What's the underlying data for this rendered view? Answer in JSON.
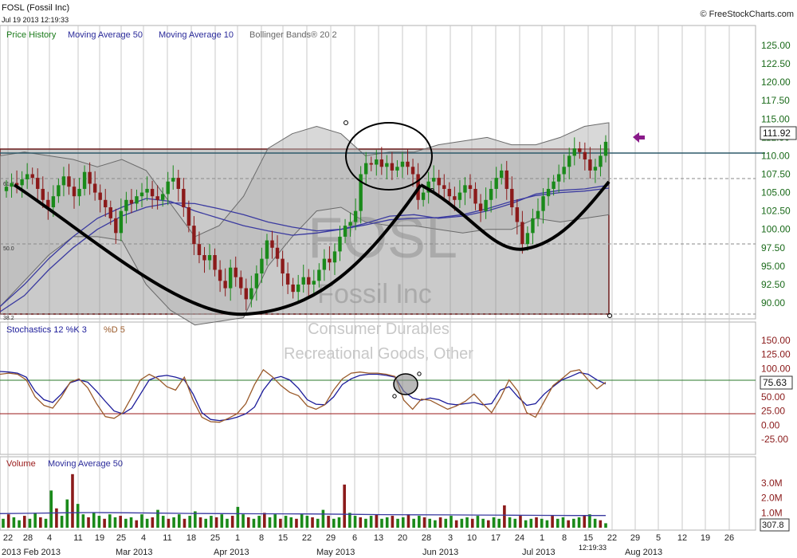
{
  "header": {
    "symbol_title": "FOSL (Fossil Inc)",
    "timestamp": "Jul 19 2013 12:19:33",
    "brand": "© FreeStockCharts.com",
    "clock": "12:19:33"
  },
  "watermark": {
    "ticker": "FOSL",
    "company": "Fossil Inc",
    "sector": "Consumer Durables",
    "industry": "Recreational Goods, Other"
  },
  "colors": {
    "up": "#1a8a1a",
    "down": "#8b1a1a",
    "ma50": "#3a3aa0",
    "stoch_k": "#1c1c9a",
    "stoch_d": "#9a5a2a",
    "arrow": "#8a1a8a",
    "resistance": "#2e5a6a"
  },
  "chart_data": [
    {
      "type": "candlestick",
      "panel": "price",
      "legend": [
        {
          "label": "Price History",
          "color": "#1a7a1a"
        },
        {
          "label": "Moving Average 50",
          "color": "#2a2a9a"
        },
        {
          "label": "Moving Average 10",
          "color": "#2a2a9a"
        },
        {
          "label": "Bollinger Bands® 20 2",
          "color": "#666666"
        }
      ],
      "y_ticks": [
        "125.00",
        "122.50",
        "120.00",
        "117.50",
        "115.00",
        "112.50",
        "110.00",
        "107.50",
        "105.00",
        "102.50",
        "100.00",
        "97.50",
        "95.00",
        "92.50",
        "90.00"
      ],
      "ylim": [
        88,
        126
      ],
      "last_value": "111.92",
      "fib_labels": [
        "61.8",
        "50.0",
        "38.2"
      ],
      "series": [
        {
          "name": "Price History",
          "values": [
            105.8,
            106.3,
            106.0,
            106.8,
            107.5,
            107.0,
            105.5,
            104.0,
            103.0,
            104.5,
            106.0,
            107.2,
            105.8,
            104.5,
            105.5,
            107.8,
            106.2,
            105.0,
            104.0,
            103.0,
            101.5,
            99.5,
            102.5,
            104.0,
            103.5,
            104.5,
            105.0,
            105.5,
            104.5,
            104.0,
            104.8,
            106.5,
            107.0,
            105.5,
            103.0,
            100.5,
            98.0,
            96.5,
            95.8,
            96.5,
            94.5,
            93.0,
            92.0,
            94.8,
            93.5,
            92.0,
            90.5,
            92.0,
            94.0,
            96.0,
            98.5,
            97.5,
            96.0,
            94.0,
            92.5,
            91.5,
            92.5,
            93.5,
            92.5,
            93.0,
            94.5,
            96.0,
            95.5,
            97.0,
            99.0,
            100.5,
            101.0,
            102.5,
            107.5,
            109.0,
            108.8,
            109.5,
            108.5,
            109.0,
            108.0,
            108.5,
            109.2,
            108.5,
            107.5,
            104.0,
            105.0,
            106.5,
            107.0,
            106.0,
            105.5,
            104.5,
            104.0,
            105.0,
            106.0,
            105.5,
            103.5,
            102.5,
            104.0,
            105.5,
            107.0,
            108.0,
            105.5,
            103.0,
            101.0,
            98.0,
            99.5,
            101.5,
            102.5,
            104.5,
            105.5,
            106.5,
            107.5,
            108.5,
            110.0,
            111.0,
            110.5,
            109.5,
            108.0,
            108.5,
            110.0,
            111.9
          ]
        },
        {
          "name": "Moving Average 50",
          "values": [
            89.5,
            92.5,
            96.0,
            99.0,
            101.5,
            103.0,
            104.2,
            103.8,
            102.5,
            101.5,
            100.5,
            99.8,
            99.2,
            99.5,
            100.0,
            100.8,
            101.8,
            102.0,
            101.5,
            101.8,
            102.5,
            103.5,
            104.8,
            105.3,
            105.5,
            106.0
          ]
        },
        {
          "name": "Moving Average 10",
          "values": [
            88.8,
            91.0,
            94.5,
            97.5,
            100.0,
            101.8,
            103.0,
            103.6,
            103.5,
            102.8,
            102.0,
            101.0,
            100.3,
            99.8,
            100.0,
            100.6,
            101.3,
            101.5,
            101.6,
            102.0,
            102.8,
            103.8,
            104.6,
            105.0,
            105.2,
            105.6
          ]
        },
        {
          "name": "Bollinger Bands® 20 2",
          "values": [
            110.0,
            110.5,
            110.0,
            109.5,
            108.5,
            109.5,
            108.0,
            103.5,
            99.0,
            100.5,
            104.5,
            111.0,
            113.0,
            114.0,
            113.0,
            110.0,
            110.5,
            110.5,
            111.5,
            112.0,
            112.5,
            111.5,
            111.5,
            112.5,
            114.0,
            114.5
          ]
        },
        {
          "name": "Bollinger Bands® 20 2",
          "values": [
            89.5,
            93.0,
            96.5,
            99.0,
            99.0,
            98.5,
            92.5,
            89.0,
            87.0,
            87.5,
            88.0,
            95.0,
            99.0,
            102.5,
            103.0,
            101.0,
            100.5,
            100.5,
            100.0,
            99.5,
            100.0,
            100.0,
            101.5,
            101.0,
            101.5,
            102.0
          ]
        }
      ]
    },
    {
      "type": "line",
      "panel": "stochastics",
      "legend": [
        {
          "label": "Stochastics 12 %K 3",
          "color": "#1c1c9a"
        },
        {
          "label": "%D 5",
          "color": "#9a5a2a"
        }
      ],
      "y_ticks": [
        "150.00",
        "125.00",
        "100.00",
        "75.00",
        "50.00",
        "25.00",
        "0.00",
        "-25.00"
      ],
      "ylim": [
        -35,
        160
      ],
      "last_value": "75.63",
      "reference_lines": [
        80,
        20
      ],
      "series": [
        {
          "name": "%K",
          "values": [
            95,
            94,
            92,
            85,
            60,
            45,
            40,
            55,
            75,
            80,
            76,
            60,
            42,
            25,
            20,
            30,
            55,
            80,
            86,
            88,
            85,
            80,
            55,
            22,
            10,
            8,
            10,
            14,
            20,
            32,
            62,
            82,
            86,
            80,
            65,
            45,
            37,
            36,
            50,
            72,
            82,
            88,
            90,
            90,
            88,
            85,
            60,
            48,
            44,
            48,
            45,
            38,
            36,
            38,
            40,
            36,
            38,
            62,
            68,
            50,
            35,
            38,
            55,
            68,
            80,
            86,
            93,
            90,
            80,
            73
          ]
        },
        {
          "name": "%D",
          "values": [
            90,
            92,
            90,
            80,
            50,
            35,
            30,
            50,
            76,
            82,
            66,
            38,
            15,
            12,
            22,
            50,
            80,
            90,
            82,
            68,
            62,
            85,
            44,
            14,
            6,
            5,
            12,
            20,
            38,
            72,
            98,
            86,
            70,
            58,
            52,
            34,
            28,
            36,
            62,
            82,
            92,
            94,
            92,
            92,
            90,
            86,
            44,
            28,
            46,
            44,
            36,
            28,
            34,
            42,
            55,
            38,
            22,
            48,
            80,
            60,
            22,
            14,
            42,
            70,
            82,
            95,
            98,
            80,
            64,
            76
          ]
        }
      ]
    },
    {
      "type": "bar",
      "panel": "volume",
      "legend": [
        {
          "label": "Volume",
          "color": "#9a1a1a"
        },
        {
          "label": "Moving Average 50",
          "color": "#2a2a9a"
        }
      ],
      "y_ticks": [
        "3.0M",
        "2.0M",
        "1.0M"
      ],
      "ylim": [
        0,
        3.6
      ],
      "last_value": "307.8",
      "series": [
        {
          "name": "Volume",
          "values": [
            0.6,
            0.9,
            0.7,
            0.5,
            0.8,
            0.6,
            1.0,
            0.7,
            0.6,
            2.5,
            1.3,
            0.8,
            1.9,
            3.6,
            1.6,
            0.9,
            0.7,
            1.0,
            0.8,
            0.6,
            0.9,
            0.7,
            0.8,
            0.6,
            0.7,
            0.5,
            0.9,
            0.6,
            0.7,
            1.2,
            0.8,
            0.6,
            0.7,
            0.9,
            0.6,
            0.8,
            1.1,
            0.7,
            0.6,
            0.8,
            0.7,
            0.9,
            0.6,
            0.8,
            1.4,
            0.9,
            0.7,
            0.6,
            0.8,
            1.0,
            0.7,
            0.9,
            0.6,
            0.8,
            0.7,
            0.6,
            0.9,
            0.8,
            0.7,
            0.6,
            1.2,
            0.8,
            0.6,
            0.7,
            2.9,
            1.0,
            0.8,
            0.7,
            0.6,
            0.8,
            0.9,
            0.6,
            0.7,
            0.8,
            0.6,
            0.7,
            0.9,
            0.6,
            0.8,
            0.7,
            0.6,
            0.5,
            0.7,
            0.6,
            0.8,
            0.5,
            0.6,
            0.7,
            0.6,
            0.8,
            0.6,
            0.5,
            0.7,
            0.6,
            1.5,
            0.7,
            0.6,
            0.8,
            0.5,
            0.6,
            0.7,
            0.6,
            0.5,
            0.8,
            0.6,
            0.7,
            0.5,
            0.6,
            0.7,
            0.8,
            0.9,
            0.6,
            0.5,
            0.3
          ]
        },
        {
          "name": "Moving Average 50",
          "values": [
            0.95,
            0.97,
            1.0,
            1.02,
            1.0,
            0.98,
            0.96,
            0.95,
            0.94,
            0.93,
            0.92,
            0.9,
            0.88,
            0.87,
            0.86,
            0.85,
            0.84,
            0.83,
            0.82,
            0.82
          ]
        }
      ]
    }
  ],
  "x_axis": {
    "day_ticks": [
      "22",
      "28",
      "4",
      "11",
      "19",
      "25",
      "4",
      "11",
      "18",
      "25",
      "1",
      "8",
      "15",
      "22",
      "29",
      "6",
      "13",
      "20",
      "28",
      "3",
      "10",
      "17",
      "24",
      "1",
      "8",
      "15",
      "22",
      "29",
      "5",
      "12",
      "19",
      "26"
    ],
    "month_labels": [
      "2013 Feb 2013",
      "Mar 2013",
      "Apr 2013",
      "May 2013",
      "Jun 2013",
      "Jul 2013",
      "Aug 2013"
    ]
  }
}
